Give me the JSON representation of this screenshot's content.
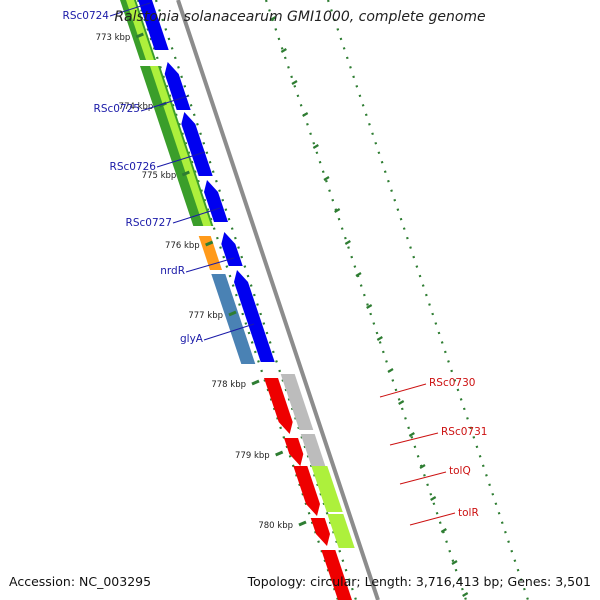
{
  "header": {
    "title": "Ralstonia solanacearum GMI1000, complete genome"
  },
  "footer": {
    "accession": "Accession: NC_003295",
    "summary": "Topology: circular; Length: 3,716,413 bp; Genes: 3,501"
  },
  "colors": {
    "backbone": "#8c8c8c",
    "ticks": "#2e7d32",
    "forward_cds": "#0000f0",
    "reverse_cds": "#ee0000",
    "gene_dark_green": "#3a9e2a",
    "gene_light_green": "#adf03c",
    "gene_orange": "#ff9a1a",
    "gene_steel_blue": "#4a82b4",
    "gene_gray": "#bcbcbc",
    "label_blue": "#1a1aa8",
    "label_red": "#cc1111"
  },
  "scale": {
    "unit": "kbp",
    "ticks": [
      {
        "label": "773 kbp",
        "kbp": 773
      },
      {
        "label": "774 kbp",
        "kbp": 774
      },
      {
        "label": "775 kbp",
        "kbp": 775
      },
      {
        "label": "776 kbp",
        "kbp": 776
      },
      {
        "label": "777 kbp",
        "kbp": 777
      },
      {
        "label": "778 kbp",
        "kbp": 778
      },
      {
        "label": "779 kbp",
        "kbp": 779
      },
      {
        "label": "780 kbp",
        "kbp": 780
      }
    ]
  },
  "genes_left": [
    {
      "name": "RSc0724"
    },
    {
      "name": "RSc0725"
    },
    {
      "name": "RSc0726"
    },
    {
      "name": "RSc0727"
    },
    {
      "name": "nrdR"
    },
    {
      "name": "glyA"
    }
  ],
  "genes_right": [
    {
      "name": "RSc0730"
    },
    {
      "name": "RSc0731"
    },
    {
      "name": "tolQ"
    },
    {
      "name": "tolR"
    }
  ]
}
